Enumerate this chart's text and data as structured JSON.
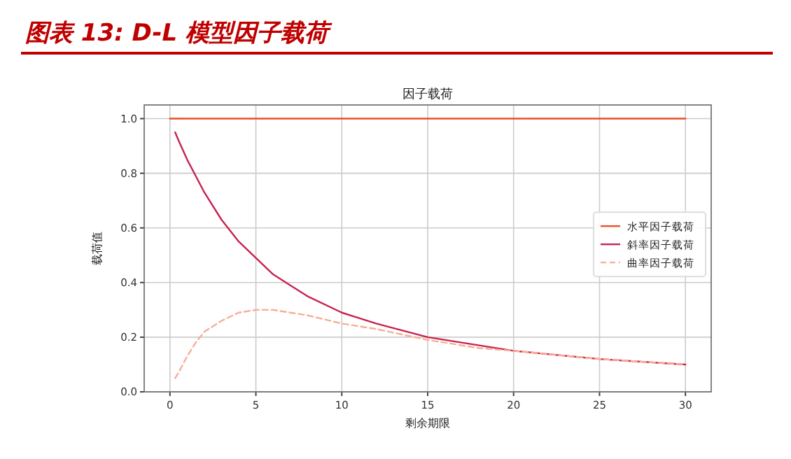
{
  "chart_data": {
    "type": "line",
    "title": "图表 13: D-L 模型因子载荷",
    "subtitle": "因子载荷",
    "xlabel": "剩余期限",
    "ylabel": "载荷值",
    "xlim": [
      -1.5,
      31.5
    ],
    "xticks": [
      0,
      5,
      10,
      15,
      20,
      25,
      30
    ],
    "ylim": [
      0,
      1.05
    ],
    "yticks": [
      {
        "value": 0,
        "label": "0.0"
      },
      {
        "value": 0.2,
        "label": "0.2"
      },
      {
        "value": 0.4,
        "label": "0.4"
      },
      {
        "value": 0.6,
        "label": "0.6"
      },
      {
        "value": 0.8,
        "label": "0.8"
      },
      {
        "value": 1,
        "label": "1.0"
      }
    ],
    "grid": true,
    "legend": "right",
    "series": [
      {
        "name": "水平因子载荷",
        "color": "#ee4f2b",
        "line_style": "solid",
        "x": [
          0,
          30
        ],
        "values": [
          1,
          1
        ]
      },
      {
        "name": "斜率因子载荷",
        "color": "#c8234f",
        "line_style": "solid",
        "x": [
          0.3,
          0.5,
          1,
          1.5,
          2,
          3,
          4,
          5,
          6,
          7,
          8,
          10,
          12,
          15,
          18,
          20,
          25,
          30
        ],
        "values": [
          0.95,
          0.92,
          0.85,
          0.79,
          0.73,
          0.63,
          0.55,
          0.49,
          0.43,
          0.39,
          0.35,
          0.29,
          0.25,
          0.2,
          0.17,
          0.15,
          0.12,
          0.1
        ]
      },
      {
        "name": "曲率因子载荷",
        "color": "#f7ae96",
        "line_style": "dashed",
        "x": [
          0.3,
          0.5,
          1,
          1.5,
          2,
          3,
          4,
          5,
          6,
          7,
          8,
          10,
          12,
          15,
          18,
          20,
          25,
          30
        ],
        "values": [
          0.05,
          0.07,
          0.13,
          0.18,
          0.22,
          0.26,
          0.29,
          0.3,
          0.3,
          0.29,
          0.28,
          0.25,
          0.23,
          0.19,
          0.16,
          0.15,
          0.12,
          0.1
        ]
      }
    ]
  }
}
